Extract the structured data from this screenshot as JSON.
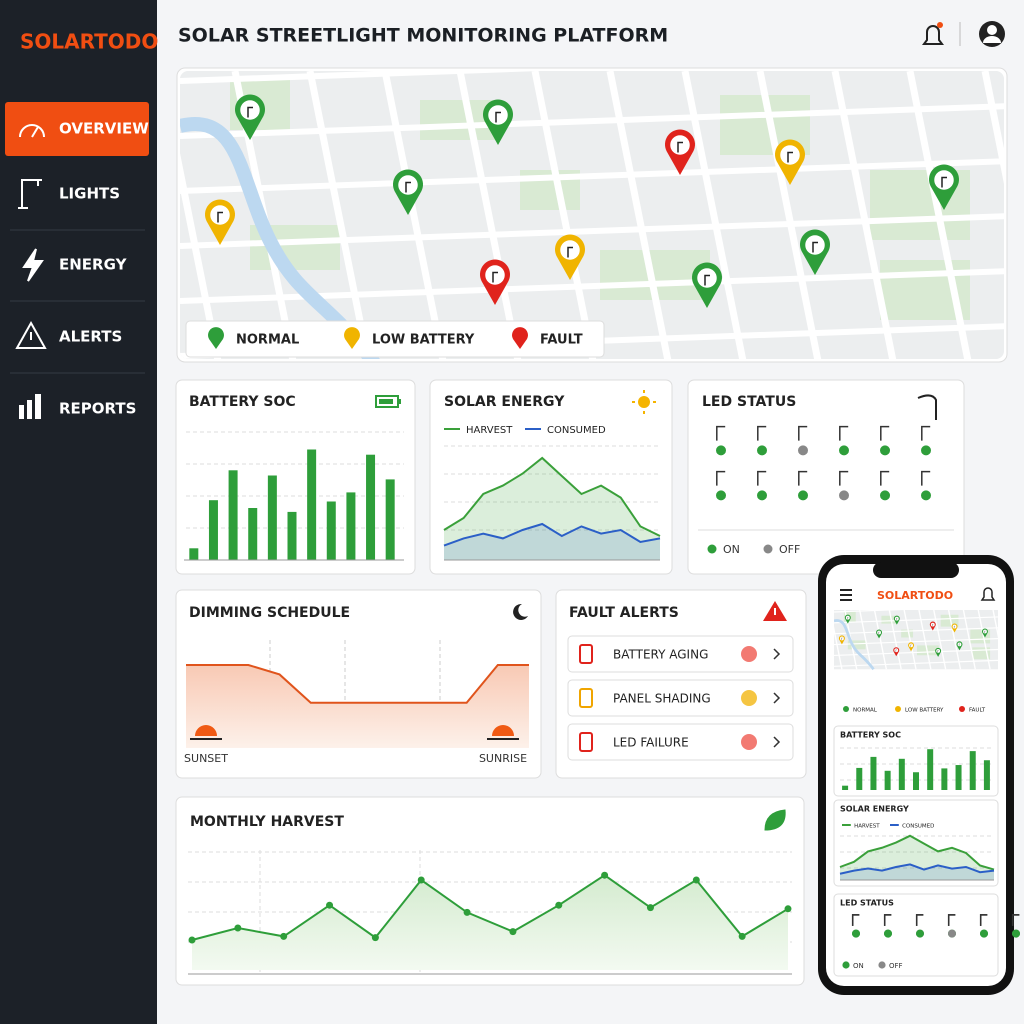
{
  "sidebar": {
    "brand": "SOLARTODO",
    "nav": [
      "OVERVIEW",
      "LIGHTS",
      "ENERGY",
      "ALERTS",
      "REPORTS"
    ]
  },
  "header": {
    "title": "SOLAR STREETLIGHT MONITORING PLATFORM"
  },
  "map": {
    "legend": [
      "NORMAL",
      "LOW BATTERY",
      "FAULT"
    ]
  },
  "battery_soc": {
    "title": "BATTERY SOC",
    "type": "bar",
    "values": [
      9,
      46,
      69,
      40,
      65,
      37,
      85,
      45,
      52,
      81,
      62
    ],
    "ylim": [
      0,
      100
    ],
    "color": "#2e9e3a"
  },
  "solar_energy": {
    "title": "SOLAR ENERGY",
    "type": "area",
    "ylim": [
      0,
      100
    ],
    "series": [
      {
        "name": "HARVEST",
        "color": "#3aa03a",
        "values": [
          25,
          35,
          55,
          62,
          72,
          85,
          70,
          55,
          62,
          52,
          28,
          20
        ]
      },
      {
        "name": "CONSUMED",
        "color": "#2b5fc7",
        "values": [
          12,
          18,
          22,
          18,
          25,
          30,
          20,
          28,
          22,
          25,
          15,
          18
        ]
      }
    ]
  },
  "led_status": {
    "title": "LED STATUS",
    "legend": [
      "ON",
      "OFF"
    ],
    "on": [
      true,
      true,
      false,
      true,
      true,
      true,
      true,
      true,
      true,
      false,
      true,
      true
    ]
  },
  "dimming_schedule": {
    "title": "DIMMING SCHEDULE",
    "start": "SUNSET",
    "end": "SUNRISE",
    "values": [
      100,
      100,
      100,
      85,
      40,
      40,
      40,
      40,
      40,
      40,
      100,
      100
    ],
    "ylim": [
      0,
      100
    ]
  },
  "fault_alerts": {
    "title": "FAULT ALERTS",
    "items": [
      "BATTERY AGING",
      "PANEL SHADING",
      "LED FAILURE"
    ]
  },
  "monthly_harvest": {
    "title": "MONTHLY HARVEST",
    "values": [
      25,
      35,
      28,
      54,
      27,
      75,
      48,
      32,
      54,
      79,
      52,
      75,
      28,
      51
    ],
    "ylim": [
      0,
      100
    ]
  }
}
